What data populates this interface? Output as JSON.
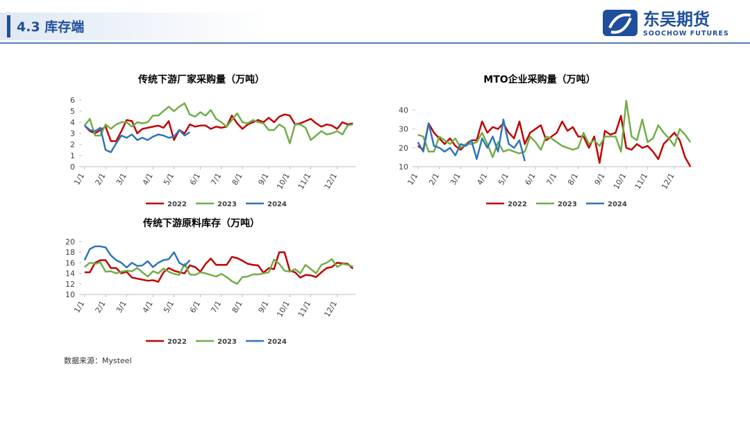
{
  "header": {
    "title": "4.3 库存端",
    "logo_cn": "东吴期货",
    "logo_en": "SOOCHOW FUTURES"
  },
  "source": "数据来源：Mysteel",
  "chart_data": [
    {
      "type": "line",
      "title": "传统下游厂家采购量（万吨）",
      "categories": [
        "1/1",
        null,
        null,
        null,
        "2/1",
        null,
        null,
        null,
        "3/1",
        null,
        null,
        null,
        null,
        "4/1",
        null,
        null,
        null,
        "5/1",
        null,
        null,
        null,
        null,
        "6/1",
        null,
        null,
        null,
        "7/1",
        null,
        null,
        null,
        "8/1",
        null,
        null,
        null,
        null,
        "9/1",
        null,
        null,
        null,
        "10/1",
        null,
        null,
        null,
        "11/1",
        null,
        null,
        null,
        null,
        "12/1",
        null,
        null,
        null
      ],
      "ylim": [
        0,
        6
      ],
      "yticks": [
        0,
        1,
        2,
        3,
        4,
        5,
        6
      ],
      "grid": false,
      "legend": "bottom",
      "series": [
        {
          "name": "2022",
          "color": "#c00000",
          "values": [
            3.7,
            3.2,
            3.0,
            3.3,
            3.6,
            2.3,
            2.3,
            3.2,
            4.2,
            4.1,
            3.0,
            3.4,
            3.5,
            3.6,
            3.7,
            3.5,
            4.1,
            2.4,
            3.3,
            3.0,
            3.8,
            3.6,
            3.7,
            3.7,
            3.4,
            3.6,
            3.5,
            3.6,
            4.6,
            3.9,
            3.4,
            3.8,
            4.0,
            4.2,
            4.0,
            4.4,
            4.0,
            4.5,
            4.7,
            4.6,
            3.8,
            3.9,
            4.1,
            4.3,
            3.9,
            3.6,
            3.8,
            3.7,
            3.4,
            4.0,
            3.8,
            3.9
          ]
        },
        {
          "name": "2023",
          "color": "#70ad47",
          "values": [
            3.7,
            4.3,
            2.8,
            2.8,
            3.8,
            3.4,
            3.8,
            4.0,
            4.0,
            3.6,
            4.0,
            3.9,
            4.0,
            4.6,
            4.6,
            5.0,
            5.4,
            5.0,
            5.4,
            5.7,
            4.7,
            4.5,
            4.9,
            4.6,
            5.1,
            4.3,
            4.0,
            3.6,
            4.2,
            4.8,
            4.0,
            3.9,
            4.2,
            4.0,
            3.9,
            3.3,
            3.3,
            3.8,
            3.5,
            2.1,
            3.8,
            3.8,
            3.5,
            2.4,
            2.8,
            3.2,
            2.9,
            3.0,
            3.2,
            2.9,
            3.7,
            3.8
          ]
        },
        {
          "name": "2024",
          "color": "#2e75b6",
          "values": [
            3.7,
            3.3,
            3.2,
            3.5,
            1.5,
            1.3,
            2.1,
            2.8,
            2.6,
            2.9,
            2.4,
            2.6,
            2.4,
            2.7,
            2.9,
            2.8,
            2.6,
            2.7,
            3.3,
            2.8,
            3.1,
            null,
            null,
            null,
            null,
            null,
            null,
            null,
            null,
            null,
            null,
            null,
            null,
            null,
            null,
            null,
            null,
            null,
            null,
            null,
            null,
            null,
            null,
            null,
            null,
            null,
            null,
            null,
            null,
            null,
            null,
            null
          ]
        }
      ]
    },
    {
      "type": "line",
      "title": "MTO企业采购量（万吨）",
      "categories": [
        "1/1",
        null,
        null,
        null,
        "2/1",
        null,
        null,
        null,
        "3/1",
        null,
        null,
        null,
        null,
        "4/1",
        null,
        null,
        null,
        "5/1",
        null,
        null,
        null,
        null,
        "6/1",
        null,
        null,
        null,
        "7/1",
        null,
        null,
        null,
        "8/1",
        null,
        null,
        null,
        null,
        "9/1",
        null,
        null,
        null,
        "10/1",
        null,
        null,
        null,
        "11/1",
        null,
        null,
        null,
        null,
        "12/1",
        null,
        null,
        null
      ],
      "ylim": [
        10,
        45
      ],
      "yticks": [
        10,
        20,
        30,
        40
      ],
      "grid": false,
      "legend": "bottom",
      "series": [
        {
          "name": "2022",
          "color": "#c00000",
          "values": [
            21,
            19,
            33,
            28,
            25,
            22,
            25,
            21,
            19,
            22,
            24,
            24,
            34,
            28,
            31,
            30,
            33,
            28,
            25,
            34,
            22,
            28,
            30,
            32,
            24,
            26,
            28,
            34,
            29,
            31,
            26,
            26,
            20,
            26,
            12,
            29,
            27,
            28,
            37,
            20,
            19,
            22,
            20,
            21,
            18,
            14,
            22,
            25,
            28,
            24,
            15,
            10
          ]
        },
        {
          "name": "2023",
          "color": "#70ad47",
          "values": [
            27,
            26,
            18,
            18,
            26,
            24,
            22,
            25,
            20,
            22,
            22,
            23,
            28,
            22,
            15,
            23,
            18,
            19,
            18,
            17,
            18,
            26,
            23,
            19,
            26,
            25,
            23,
            21,
            20,
            19,
            20,
            28,
            22,
            24,
            21,
            26,
            26,
            26,
            18,
            45,
            26,
            24,
            35,
            23,
            25,
            32,
            28,
            25,
            21,
            30,
            27,
            23
          ]
        },
        {
          "name": "2024",
          "color": "#2e75b6",
          "values": [
            23,
            18,
            33,
            21,
            20,
            18,
            20,
            16,
            22,
            21,
            24,
            14,
            25,
            20,
            26,
            18,
            35,
            22,
            20,
            24,
            13,
            null,
            null,
            null,
            null,
            null,
            null,
            null,
            null,
            null,
            null,
            null,
            null,
            null,
            null,
            null,
            null,
            null,
            null,
            null,
            null,
            null,
            null,
            null,
            null,
            null,
            null,
            null,
            null,
            null,
            null,
            null
          ]
        }
      ]
    },
    {
      "type": "line",
      "title": "传统下游原料库存（万吨）",
      "categories": [
        "1/1",
        null,
        null,
        null,
        "2/1",
        null,
        null,
        null,
        "3/1",
        null,
        null,
        null,
        null,
        "4/1",
        null,
        null,
        null,
        "5/1",
        null,
        null,
        null,
        null,
        "6/1",
        null,
        null,
        null,
        "7/1",
        null,
        null,
        null,
        "8/1",
        null,
        null,
        null,
        null,
        "9/1",
        null,
        null,
        null,
        "10/1",
        null,
        null,
        null,
        "11/1",
        null,
        null,
        null,
        null,
        "12/1",
        null,
        null,
        null
      ],
      "ylim": [
        10,
        20
      ],
      "yticks": [
        10,
        12,
        14,
        16,
        18,
        20
      ],
      "grid": false,
      "legend": "bottom",
      "series": [
        {
          "name": "2022",
          "color": "#c00000",
          "values": [
            14.2,
            14.2,
            16,
            16.5,
            16.5,
            15,
            15,
            14,
            14.3,
            13.2,
            13,
            12.8,
            12.6,
            12.7,
            12.4,
            14.2,
            15,
            14.5,
            14.2,
            14,
            15.5,
            15.2,
            14.3,
            15.8,
            16.8,
            15.6,
            15.6,
            15.6,
            17.1,
            16.9,
            16.4,
            15.8,
            15.6,
            15.5,
            14.1,
            15,
            14.8,
            18,
            18,
            14.5,
            14.2,
            13.2,
            13.7,
            13.6,
            13.3,
            14.2,
            15,
            15.2,
            16,
            15.9,
            15.8,
            14.9
          ]
        },
        {
          "name": "2023",
          "color": "#70ad47",
          "values": [
            15.2,
            16,
            15.8,
            16.1,
            14.3,
            14.4,
            14,
            14.3,
            14.5,
            14.4,
            15,
            14.2,
            13.4,
            14.4,
            14,
            14.9,
            14.3,
            13.9,
            13.7,
            15.8,
            13.8,
            13.7,
            14.2,
            14,
            13.7,
            13.4,
            13.9,
            13.3,
            12.5,
            12,
            13.3,
            13.4,
            13.8,
            13.8,
            14,
            14.2,
            16.6,
            15.8,
            14.5,
            14.3,
            14.8,
            14,
            15.6,
            14.8,
            14,
            15.6,
            16,
            16.7,
            15.2,
            15.8,
            15.6,
            15.3
          ]
        },
        {
          "name": "2024",
          "color": "#2e75b6",
          "values": [
            16.5,
            18.6,
            19.1,
            19.1,
            18.9,
            17.4,
            16.5,
            16,
            15.1,
            16,
            15.4,
            15.5,
            16.3,
            15.2,
            16,
            16.5,
            16.7,
            18,
            16,
            15.4,
            16.5,
            null,
            null,
            null,
            null,
            null,
            null,
            null,
            null,
            null,
            null,
            null,
            null,
            null,
            null,
            null,
            null,
            null,
            null,
            null,
            null,
            null,
            null,
            null,
            null,
            null,
            null,
            null,
            null,
            null,
            null,
            null
          ]
        }
      ]
    }
  ]
}
